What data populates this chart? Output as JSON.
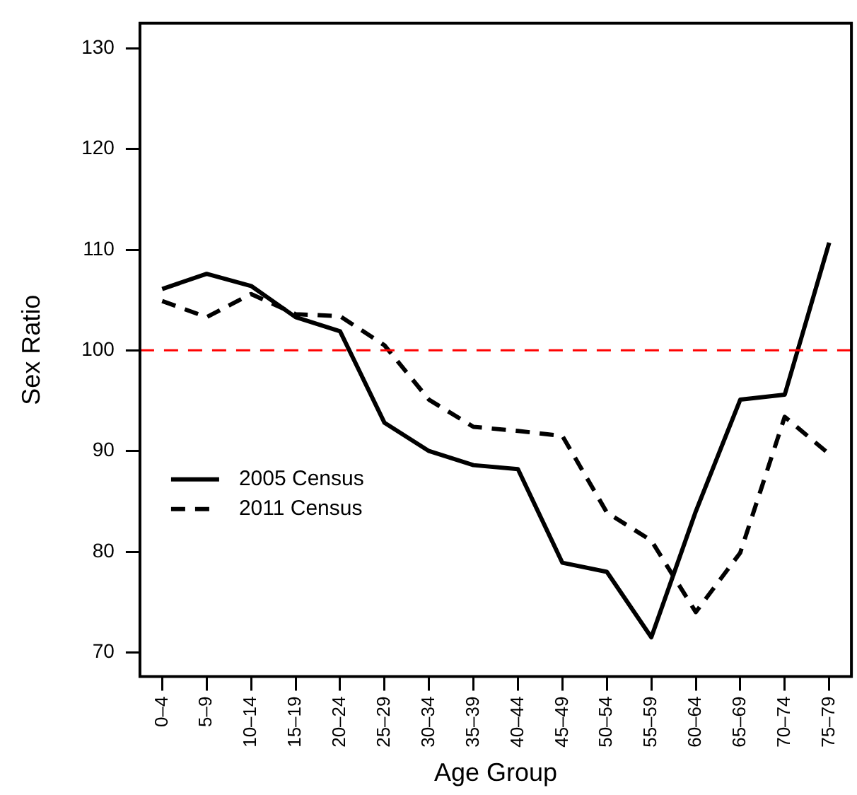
{
  "chart_data": {
    "type": "line",
    "xlabel": "Age Group",
    "ylabel": "Sex Ratio",
    "categories": [
      "0–4",
      "5–9",
      "10–14",
      "15–19",
      "20–24",
      "25–29",
      "30–34",
      "35–39",
      "40–44",
      "45–49",
      "50–54",
      "55–59",
      "60–64",
      "65–69",
      "70–74",
      "75–79"
    ],
    "series": [
      {
        "name": "2005 Census",
        "color": "#000000",
        "line_style": "solid",
        "values": [
          106.1,
          107.6,
          106.4,
          103.3,
          101.9,
          92.8,
          90.0,
          88.6,
          88.2,
          78.9,
          78.0,
          71.5,
          84.0,
          95.1,
          95.6,
          110.7
        ]
      },
      {
        "name": "2011 Census",
        "color": "#000000",
        "line_style": "dashed",
        "values": [
          104.9,
          103.3,
          105.6,
          103.6,
          103.4,
          100.5,
          95.1,
          92.4,
          92.0,
          91.5,
          83.9,
          81.1,
          74.0,
          79.9,
          93.4,
          89.7
        ]
      }
    ],
    "ylim": [
      67.6,
      132.5
    ],
    "yticks": [
      70,
      80,
      90,
      100,
      110,
      120,
      130
    ],
    "ref_lines": [
      {
        "axis": "y",
        "value": 100,
        "color": "#ff0000",
        "line_style": "dashed"
      }
    ],
    "legend": "left",
    "grid": false,
    "marker": "none"
  }
}
